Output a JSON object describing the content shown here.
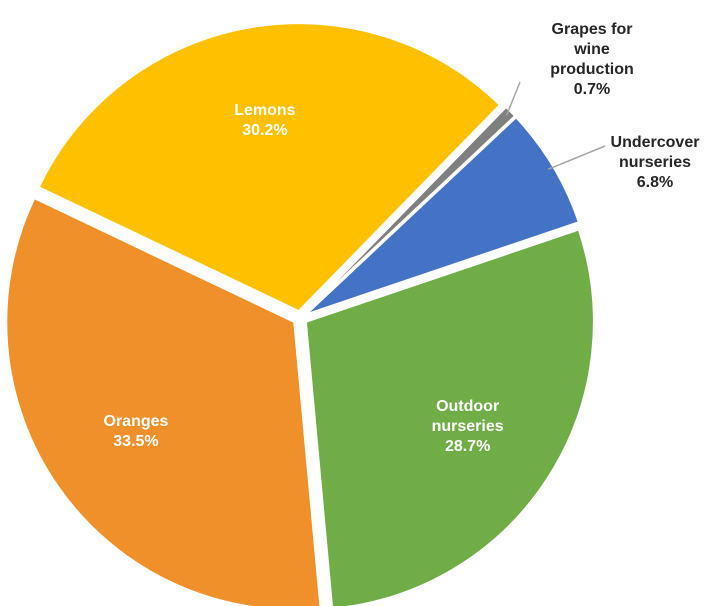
{
  "chart_data": {
    "type": "pie",
    "categories": [
      "Grapes for wine production",
      "Undercover nurseries",
      "Outdoor nurseries",
      "Oranges",
      "Lemons"
    ],
    "values": [
      0.7,
      6.8,
      28.7,
      33.5,
      30.2
    ],
    "value_labels": [
      "0.7%",
      "6.8%",
      "28.7%",
      "33.5%",
      "30.2%"
    ],
    "colors": [
      "#7f7f7f",
      "#4472c4",
      "#70ad47",
      "#f0902a",
      "#ffc000"
    ]
  }
}
